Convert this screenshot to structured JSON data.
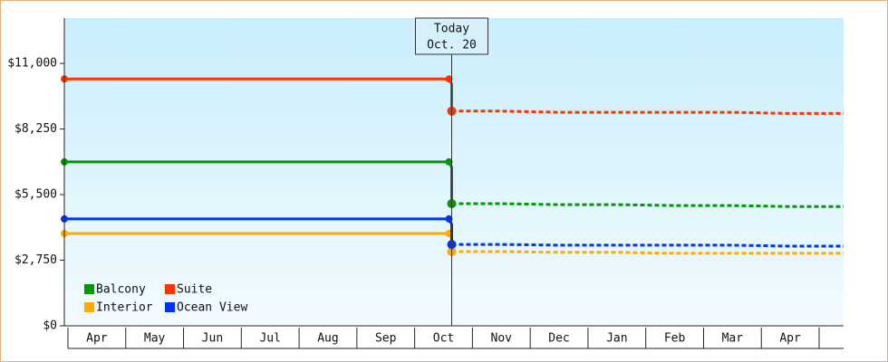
{
  "chart_data": {
    "type": "line",
    "categories": [
      "Apr",
      "May",
      "Jun",
      "Jul",
      "Aug",
      "Sep",
      "Oct",
      "Nov",
      "Dec",
      "Jan",
      "Feb",
      "Mar",
      "Apr",
      null
    ],
    "ylim": [
      0,
      12900
    ],
    "yticks": [
      {
        "value": 0,
        "label": "$0"
      },
      {
        "value": 2750,
        "label": "$2,750"
      },
      {
        "value": 5500,
        "label": "$5,500"
      },
      {
        "value": 8250,
        "label": "$8,250"
      },
      {
        "value": 11000,
        "label": "$11,000"
      }
    ],
    "today": {
      "title": "Today",
      "date": "Oct. 20",
      "category": 6
    },
    "legend": "bottom-left",
    "series": [
      {
        "name": "Balcony",
        "color": "#009900",
        "values": [
          6870,
          6870,
          6870,
          6870,
          6870,
          6870,
          6870,
          null,
          null,
          null,
          null,
          null,
          null,
          null
        ],
        "forecast": [
          null,
          null,
          null,
          null,
          null,
          null,
          5120,
          5120,
          5080,
          5080,
          5040,
          5040,
          5000,
          5000
        ]
      },
      {
        "name": "Suite",
        "color": "#ff3300",
        "values": [
          10350,
          10350,
          10350,
          10350,
          10350,
          10350,
          10350,
          null,
          null,
          null,
          null,
          null,
          null,
          null
        ],
        "forecast": [
          null,
          null,
          null,
          null,
          null,
          null,
          9000,
          9000,
          8950,
          8950,
          8950,
          8950,
          8900,
          8900
        ]
      },
      {
        "name": "Interior",
        "color": "#ffaa00",
        "values": [
          3870,
          3870,
          3870,
          3870,
          3870,
          3870,
          3870,
          null,
          null,
          null,
          null,
          null,
          null,
          null
        ],
        "forecast": [
          null,
          null,
          null,
          null,
          null,
          null,
          3110,
          3110,
          3080,
          3080,
          3040,
          3040,
          3040,
          3040
        ]
      },
      {
        "name": "Ocean View",
        "color": "#0033ff",
        "values": [
          4480,
          4480,
          4480,
          4480,
          4480,
          4480,
          4480,
          null,
          null,
          null,
          null,
          null,
          null,
          null
        ],
        "forecast": [
          null,
          null,
          null,
          null,
          null,
          null,
          3410,
          3410,
          3380,
          3380,
          3380,
          3380,
          3340,
          3340
        ]
      }
    ]
  }
}
